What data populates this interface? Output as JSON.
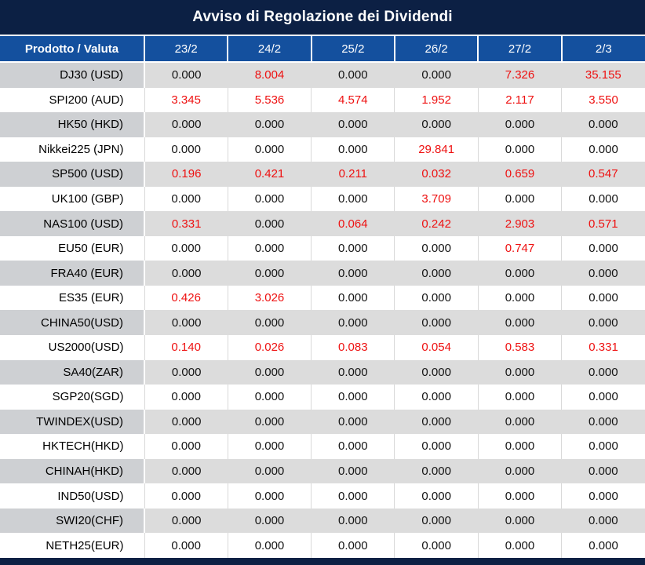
{
  "title": "Avviso di Regolazione dei Dividendi",
  "colors": {
    "navy_bar": "#0c2044",
    "header_blue": "#14509e",
    "row_gray": "#dcdcdc",
    "label_gray": "#ced0d3",
    "divider_gray": "#d9d9d9",
    "nonzero_red": "#ee1111",
    "text_black": "#141414"
  },
  "table": {
    "header": [
      "Prodotto / Valuta",
      "23/2",
      "24/2",
      "25/2",
      "26/2",
      "27/2",
      "2/3"
    ],
    "rows": [
      {
        "product": "DJ30 (USD)",
        "values": [
          "0.000",
          "8.004",
          "0.000",
          "0.000",
          "7.326",
          "35.155"
        ]
      },
      {
        "product": "SPI200 (AUD)",
        "values": [
          "3.345",
          "5.536",
          "4.574",
          "1.952",
          "2.117",
          "3.550"
        ]
      },
      {
        "product": "HK50 (HKD)",
        "values": [
          "0.000",
          "0.000",
          "0.000",
          "0.000",
          "0.000",
          "0.000"
        ]
      },
      {
        "product": "Nikkei225 (JPN)",
        "values": [
          "0.000",
          "0.000",
          "0.000",
          "29.841",
          "0.000",
          "0.000"
        ]
      },
      {
        "product": "SP500 (USD)",
        "values": [
          "0.196",
          "0.421",
          "0.211",
          "0.032",
          "0.659",
          "0.547"
        ]
      },
      {
        "product": "UK100 (GBP)",
        "values": [
          "0.000",
          "0.000",
          "0.000",
          "3.709",
          "0.000",
          "0.000"
        ]
      },
      {
        "product": "NAS100 (USD)",
        "values": [
          "0.331",
          "0.000",
          "0.064",
          "0.242",
          "2.903",
          "0.571"
        ]
      },
      {
        "product": "EU50 (EUR)",
        "values": [
          "0.000",
          "0.000",
          "0.000",
          "0.000",
          "0.747",
          "0.000"
        ]
      },
      {
        "product": "FRA40 (EUR)",
        "values": [
          "0.000",
          "0.000",
          "0.000",
          "0.000",
          "0.000",
          "0.000"
        ]
      },
      {
        "product": "ES35 (EUR)",
        "values": [
          "0.426",
          "3.026",
          "0.000",
          "0.000",
          "0.000",
          "0.000"
        ]
      },
      {
        "product": "CHINA50(USD)",
        "values": [
          "0.000",
          "0.000",
          "0.000",
          "0.000",
          "0.000",
          "0.000"
        ]
      },
      {
        "product": "US2000(USD)",
        "values": [
          "0.140",
          "0.026",
          "0.083",
          "0.054",
          "0.583",
          "0.331"
        ]
      },
      {
        "product": "SA40(ZAR)",
        "values": [
          "0.000",
          "0.000",
          "0.000",
          "0.000",
          "0.000",
          "0.000"
        ]
      },
      {
        "product": "SGP20(SGD)",
        "values": [
          "0.000",
          "0.000",
          "0.000",
          "0.000",
          "0.000",
          "0.000"
        ]
      },
      {
        "product": "TWINDEX(USD)",
        "values": [
          "0.000",
          "0.000",
          "0.000",
          "0.000",
          "0.000",
          "0.000"
        ]
      },
      {
        "product": "HKTECH(HKD)",
        "values": [
          "0.000",
          "0.000",
          "0.000",
          "0.000",
          "0.000",
          "0.000"
        ]
      },
      {
        "product": "CHINAH(HKD)",
        "values": [
          "0.000",
          "0.000",
          "0.000",
          "0.000",
          "0.000",
          "0.000"
        ]
      },
      {
        "product": "IND50(USD)",
        "values": [
          "0.000",
          "0.000",
          "0.000",
          "0.000",
          "0.000",
          "0.000"
        ]
      },
      {
        "product": "SWI20(CHF)",
        "values": [
          "0.000",
          "0.000",
          "0.000",
          "0.000",
          "0.000",
          "0.000"
        ]
      },
      {
        "product": "NETH25(EUR)",
        "values": [
          "0.000",
          "0.000",
          "0.000",
          "0.000",
          "0.000",
          "0.000"
        ]
      }
    ]
  }
}
